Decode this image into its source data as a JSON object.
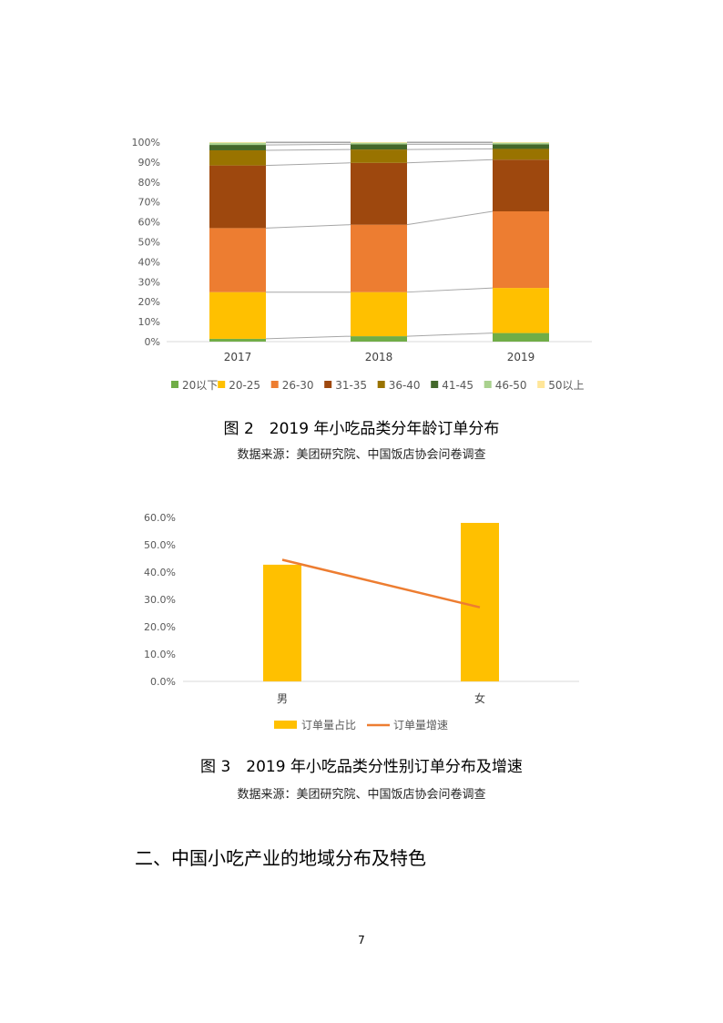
{
  "chart_data": [
    {
      "type": "bar",
      "stacked": true,
      "categories": [
        "2017",
        "2018",
        "2019"
      ],
      "ylim": [
        0,
        100
      ],
      "yticks": [
        "0%",
        "10%",
        "20%",
        "30%",
        "40%",
        "50%",
        "60%",
        "70%",
        "80%",
        "90%",
        "100%"
      ],
      "legend_position": "bottom",
      "series": [
        {
          "name": "20以下",
          "color": "#70ad47",
          "values": [
            1.4,
            2.7,
            4.3
          ]
        },
        {
          "name": "20-25",
          "color": "#ffc000",
          "values": [
            23.4,
            22.1,
            22.6
          ]
        },
        {
          "name": "26-30",
          "color": "#ed7d31",
          "values": [
            32.1,
            33.8,
            38.4
          ]
        },
        {
          "name": "31-35",
          "color": "#9e480e",
          "values": [
            31.4,
            31.0,
            25.9
          ]
        },
        {
          "name": "36-40",
          "color": "#997300",
          "values": [
            7.6,
            6.7,
            5.4
          ]
        },
        {
          "name": "41-45",
          "color": "#43682b",
          "values": [
            2.7,
            2.6,
            2.3
          ]
        },
        {
          "name": "46-50",
          "color": "#a9d18e",
          "values": [
            1.1,
            0.8,
            0.8
          ]
        },
        {
          "name": "50以上",
          "color": "#ffe699",
          "values": [
            0.3,
            0.3,
            0.3
          ]
        }
      ],
      "caption": "图 2　2019 年小吃品类分年龄订单分布",
      "source": "数据来源：美团研究院、中国饭店协会问卷调查"
    },
    {
      "type": "bar+line",
      "categories": [
        "男",
        "女"
      ],
      "ylim": [
        0,
        60
      ],
      "yticks": [
        "0.0%",
        "10.0%",
        "20.0%",
        "30.0%",
        "40.0%",
        "50.0%",
        "60.0%"
      ],
      "legend_position": "bottom",
      "series": [
        {
          "name": "订单量占比",
          "type": "bar",
          "color": "#ffc000",
          "values": [
            42.7,
            58.0
          ]
        },
        {
          "name": "订单量增速",
          "type": "line",
          "color": "#ed7d31",
          "values": [
            44.5,
            27.1
          ]
        }
      ],
      "caption": "图 3　2019 年小吃品类分性别订单分布及增速",
      "source": "数据来源：美团研究院、中国饭店协会问卷调查"
    }
  ],
  "section_heading": "二、中国小吃产业的地域分布及特色",
  "page_number": "7"
}
